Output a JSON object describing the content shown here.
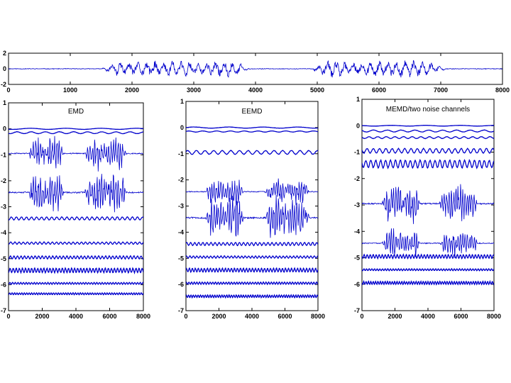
{
  "chart_data": [
    {
      "type": "line",
      "title": "",
      "xlabel": "",
      "ylabel": "",
      "xlim": [
        0,
        8000
      ],
      "ylim": [
        -2,
        2
      ],
      "x_ticks": [
        0,
        1000,
        2000,
        3000,
        4000,
        5000,
        6000,
        7000,
        8000
      ],
      "y_ticks": [
        2,
        0,
        -2
      ],
      "grid": false,
      "series": [
        {
          "color": "#0000cc",
          "offset": 0,
          "amplitude": 1.2,
          "active_segments": [
            [
              1500,
              3900
            ],
            [
              4900,
              7100
            ]
          ]
        }
      ]
    },
    {
      "type": "line",
      "title": "EMD",
      "xlabel": "",
      "ylabel": "",
      "xlim": [
        0,
        8000
      ],
      "ylim": [
        -7,
        1
      ],
      "x_ticks": [
        0,
        2000,
        4000,
        6000,
        8000
      ],
      "y_ticks": [
        1,
        0,
        -1,
        -2,
        -3,
        -4,
        -5,
        -6,
        -7
      ],
      "grid": false,
      "series": [
        {
          "color": "#0000cc",
          "offset": 0.0,
          "amplitude": 0.03
        },
        {
          "color": "#0000cc",
          "offset": -0.15,
          "amplitude": 0.05
        },
        {
          "color": "#0000cc",
          "offset": -0.95,
          "amplitude": 0.7,
          "active_segments": [
            [
              1200,
              3300
            ],
            [
              4500,
              7000
            ]
          ]
        },
        {
          "color": "#0000cc",
          "offset": -2.45,
          "amplitude": 0.85,
          "active_segments": [
            [
              1200,
              3300
            ],
            [
              4500,
              7000
            ]
          ]
        },
        {
          "color": "#0000cc",
          "offset": -3.45,
          "amplitude": 0.08
        },
        {
          "color": "#0000cc",
          "offset": -4.4,
          "amplitude": 0.06
        },
        {
          "color": "#0000cc",
          "offset": -4.95,
          "amplitude": 0.08
        },
        {
          "color": "#0000cc",
          "offset": -5.45,
          "amplitude": 0.12
        },
        {
          "color": "#0000cc",
          "offset": -5.95,
          "amplitude": 0.05
        },
        {
          "color": "#0000cc",
          "offset": -6.35,
          "amplitude": 0.05
        }
      ]
    },
    {
      "type": "line",
      "title": "EEMD",
      "xlabel": "",
      "ylabel": "",
      "xlim": [
        0,
        8000
      ],
      "ylim": [
        -7,
        1
      ],
      "x_ticks": [
        0,
        2000,
        4000,
        6000,
        8000
      ],
      "y_ticks": [
        1,
        0,
        -1,
        -2,
        -3,
        -4,
        -5,
        -6,
        -7
      ],
      "grid": false,
      "series": [
        {
          "color": "#0000cc",
          "offset": 0.0,
          "amplitude": 0.03
        },
        {
          "color": "#0000cc",
          "offset": -0.15,
          "amplitude": 0.03
        },
        {
          "color": "#0000cc",
          "offset": -0.95,
          "amplitude": 0.1
        },
        {
          "color": "#0000cc",
          "offset": -2.45,
          "amplitude": 0.55,
          "active_segments": [
            [
              1200,
              3500
            ],
            [
              4800,
              7500
            ]
          ]
        },
        {
          "color": "#0000cc",
          "offset": -3.45,
          "amplitude": 0.9,
          "active_segments": [
            [
              1200,
              3500
            ],
            [
              4800,
              7500
            ]
          ]
        },
        {
          "color": "#0000cc",
          "offset": -4.45,
          "amplitude": 0.08
        },
        {
          "color": "#0000cc",
          "offset": -4.95,
          "amplitude": 0.06
        },
        {
          "color": "#0000cc",
          "offset": -5.45,
          "amplitude": 0.1
        },
        {
          "color": "#0000cc",
          "offset": -5.95,
          "amplitude": 0.06
        },
        {
          "color": "#0000cc",
          "offset": -6.45,
          "amplitude": 0.07
        }
      ]
    },
    {
      "type": "line",
      "title": "MEMD/two noise channels",
      "xlabel": "",
      "ylabel": "",
      "xlim": [
        0,
        8000
      ],
      "ylim": [
        -7,
        1
      ],
      "x_ticks": [
        0,
        2000,
        4000,
        6000,
        8000
      ],
      "y_ticks": [
        1,
        0,
        -1,
        -2,
        -3,
        -4,
        -5,
        -6,
        -7
      ],
      "grid": false,
      "series": [
        {
          "color": "#0000cc",
          "offset": 0.0,
          "amplitude": 0.02
        },
        {
          "color": "#0000cc",
          "offset": -0.2,
          "amplitude": 0.05
        },
        {
          "color": "#0000cc",
          "offset": -0.45,
          "amplitude": 0.05
        },
        {
          "color": "#0000cc",
          "offset": -0.95,
          "amplitude": 0.12
        },
        {
          "color": "#0000cc",
          "offset": -1.45,
          "amplitude": 0.2
        },
        {
          "color": "#0000cc",
          "offset": -2.95,
          "amplitude": 0.85,
          "active_segments": [
            [
              1200,
              3500
            ],
            [
              4700,
              7000
            ]
          ]
        },
        {
          "color": "#0000cc",
          "offset": -4.45,
          "amplitude": 0.6,
          "active_segments": [
            [
              1200,
              3500
            ],
            [
              4700,
              7000
            ]
          ]
        },
        {
          "color": "#0000cc",
          "offset": -4.95,
          "amplitude": 0.1
        },
        {
          "color": "#0000cc",
          "offset": -5.45,
          "amplitude": 0.05
        },
        {
          "color": "#0000cc",
          "offset": -5.95,
          "amplitude": 0.08
        }
      ]
    }
  ]
}
